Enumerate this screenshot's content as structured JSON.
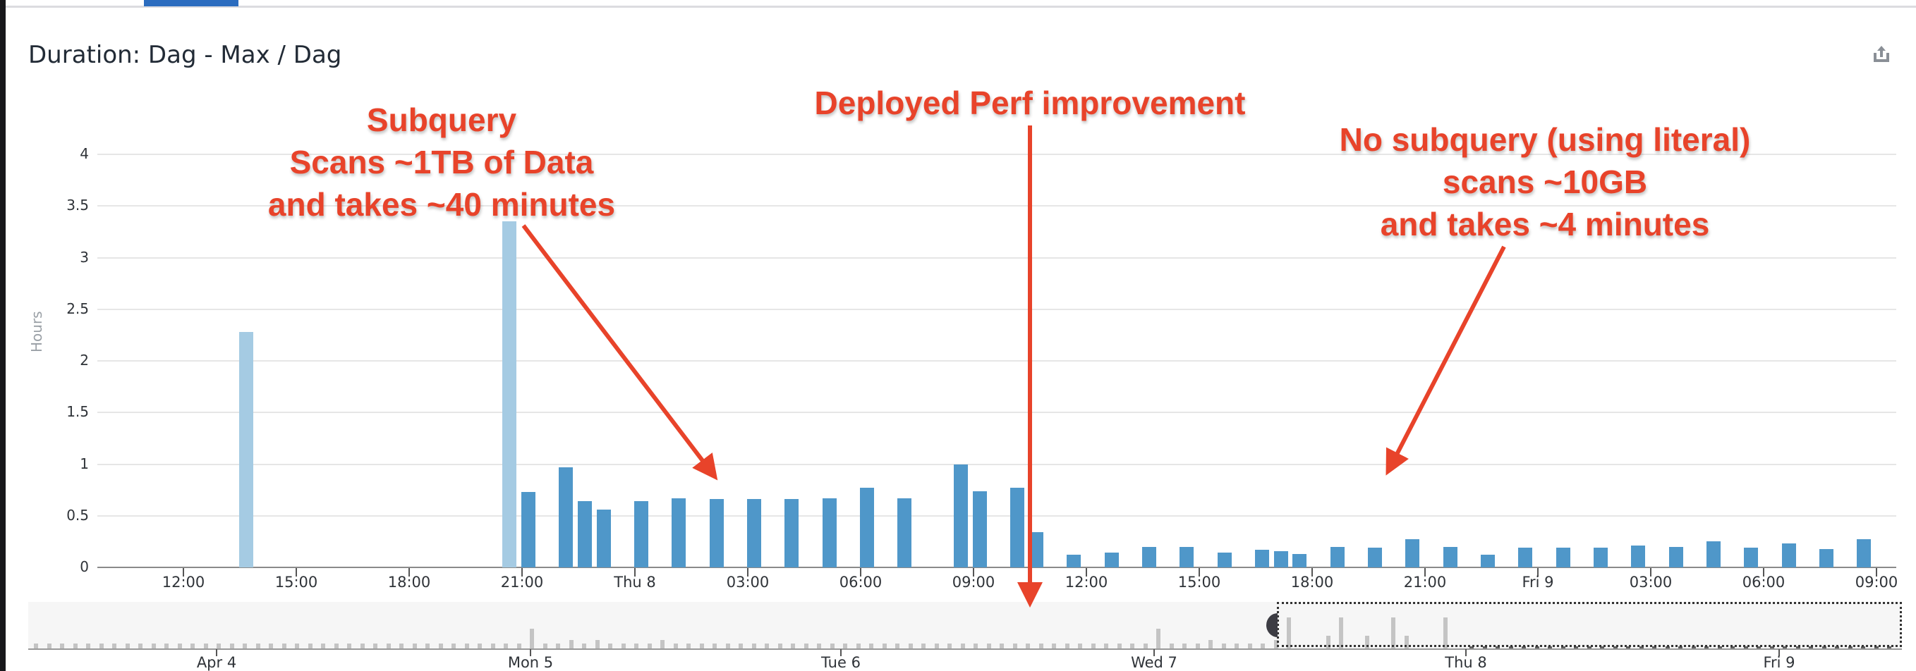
{
  "header": {
    "title": "Duration: Dag - Max / Dag",
    "export_icon": "share-export-icon"
  },
  "colors": {
    "bar_primary": "#4f97c9",
    "bar_light": "#a5cbe3",
    "annotation": "#e8432a",
    "tab_active": "#2b6cbf"
  },
  "annotations": [
    {
      "id": "subquery",
      "lines": [
        "Subquery",
        "Scans ~1TB of Data",
        "and takes ~40 minutes"
      ]
    },
    {
      "id": "deployed",
      "lines": [
        "Deployed Perf improvement"
      ]
    },
    {
      "id": "literal",
      "lines": [
        "No subquery (using literal)",
        "scans ~10GB",
        "and takes ~4 minutes"
      ]
    }
  ],
  "navigator": {
    "labels": [
      "Apr 4",
      "Mon 5",
      "Tue 6",
      "Wed 7",
      "Thu 8",
      "Fri 9"
    ]
  },
  "chart_data": {
    "type": "bar",
    "title": "Duration: Dag - Max / Dag",
    "xlabel": "",
    "ylabel": "Hours",
    "ylim": [
      0,
      4
    ],
    "yticks": [
      0,
      0.5,
      1,
      1.5,
      2,
      2.5,
      3,
      3.5,
      4
    ],
    "xticks": [
      "12:00",
      "15:00",
      "18:00",
      "21:00",
      "Thu 8",
      "03:00",
      "06:00",
      "09:00",
      "12:00",
      "15:00",
      "18:00",
      "21:00",
      "Fri 9",
      "03:00",
      "06:00",
      "09:00"
    ],
    "grid": true,
    "legend": "none",
    "x": [
      "Wed 13:30",
      "Wed 20:30",
      "Wed 21:00",
      "Wed 22:00",
      "Wed 22:30",
      "Wed 23:00",
      "Thu 00:00",
      "Thu 01:00",
      "Thu 02:00",
      "Thu 03:00",
      "Thu 04:00",
      "Thu 05:00",
      "Thu 06:00",
      "Thu 07:00",
      "Thu 08:30",
      "Thu 09:00",
      "Thu 10:00",
      "Thu 10:30",
      "Thu 11:30",
      "Thu 12:30",
      "Thu 13:30",
      "Thu 14:30",
      "Thu 15:30",
      "Thu 16:30",
      "Thu 17:00",
      "Thu 17:30",
      "Thu 18:30",
      "Thu 19:30",
      "Thu 20:30",
      "Thu 21:30",
      "Thu 22:30",
      "Thu 23:30",
      "Fri 00:30",
      "Fri 01:30",
      "Fri 02:30",
      "Fri 03:30",
      "Fri 04:30",
      "Fri 05:30",
      "Fri 06:30",
      "Fri 07:30",
      "Fri 08:30"
    ],
    "slots": [
      3,
      17,
      18,
      20,
      21,
      22,
      24,
      26,
      28,
      30,
      32,
      34,
      36,
      38,
      41,
      42,
      44,
      45,
      47,
      49,
      51,
      53,
      55,
      57,
      58,
      59,
      61,
      63,
      65,
      67,
      69,
      71,
      73,
      75,
      77,
      79,
      81,
      83,
      85,
      87,
      89
    ],
    "values": [
      2.28,
      3.35,
      0.73,
      0.97,
      0.645,
      0.56,
      0.645,
      0.67,
      0.66,
      0.66,
      0.66,
      0.67,
      0.77,
      0.67,
      1.0,
      0.74,
      0.77,
      0.34,
      0.12,
      0.145,
      0.2,
      0.2,
      0.145,
      0.17,
      0.16,
      0.13,
      0.2,
      0.19,
      0.27,
      0.2,
      0.12,
      0.19,
      0.19,
      0.19,
      0.215,
      0.2,
      0.255,
      0.19,
      0.23,
      0.175,
      0.27
    ],
    "light": [
      true,
      true,
      false,
      false,
      false,
      false,
      false,
      false,
      false,
      false,
      false,
      false,
      false,
      false,
      false,
      false,
      false,
      false,
      false,
      false,
      false,
      false,
      false,
      false,
      false,
      false,
      false,
      false,
      false,
      false,
      false,
      false,
      false,
      false,
      false,
      false,
      false,
      false,
      false,
      false,
      false
    ]
  }
}
